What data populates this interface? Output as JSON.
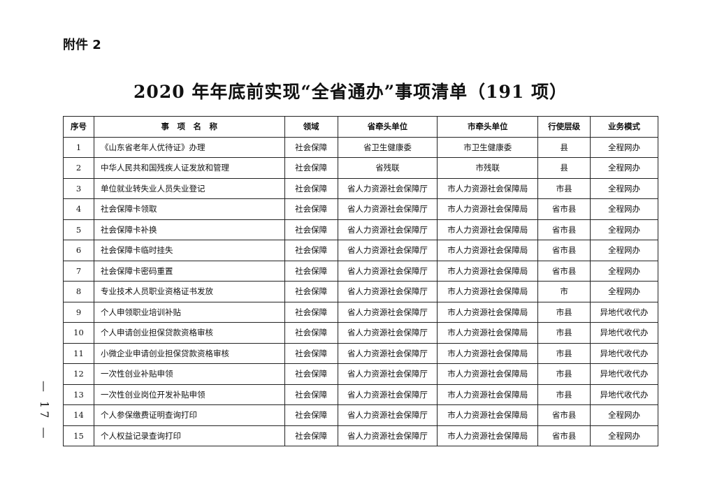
{
  "attachment_label": "附件 2",
  "title": "2020 年年底前实现“全省通办”事项清单（191 项）",
  "page_number": "— 17 —",
  "table": {
    "headers": [
      "序号",
      "事　项　名　称",
      "领域",
      "省牵头单位",
      "市牵头单位",
      "行使层级",
      "业务模式"
    ],
    "rows": [
      [
        "1",
        "《山东省老年人优待证》办理",
        "社会保障",
        "省卫生健康委",
        "市卫生健康委",
        "县",
        "全程网办"
      ],
      [
        "2",
        "中华人民共和国残疾人证发放和管理",
        "社会保障",
        "省残联",
        "市残联",
        "县",
        "全程网办"
      ],
      [
        "3",
        "单位就业转失业人员失业登记",
        "社会保障",
        "省人力资源社会保障厅",
        "市人力资源社会保障局",
        "市县",
        "全程网办"
      ],
      [
        "4",
        "社会保障卡领取",
        "社会保障",
        "省人力资源社会保障厅",
        "市人力资源社会保障局",
        "省市县",
        "全程网办"
      ],
      [
        "5",
        "社会保障卡补换",
        "社会保障",
        "省人力资源社会保障厅",
        "市人力资源社会保障局",
        "省市县",
        "全程网办"
      ],
      [
        "6",
        "社会保障卡临时挂失",
        "社会保障",
        "省人力资源社会保障厅",
        "市人力资源社会保障局",
        "省市县",
        "全程网办"
      ],
      [
        "7",
        "社会保障卡密码重置",
        "社会保障",
        "省人力资源社会保障厅",
        "市人力资源社会保障局",
        "省市县",
        "全程网办"
      ],
      [
        "8",
        "专业技术人员职业资格证书发放",
        "社会保障",
        "省人力资源社会保障厅",
        "市人力资源社会保障局",
        "市",
        "全程网办"
      ],
      [
        "9",
        "个人申领职业培训补贴",
        "社会保障",
        "省人力资源社会保障厅",
        "市人力资源社会保障局",
        "市县",
        "异地代收代办"
      ],
      [
        "10",
        "个人申请创业担保贷款资格审核",
        "社会保障",
        "省人力资源社会保障厅",
        "市人力资源社会保障局",
        "市县",
        "异地代收代办"
      ],
      [
        "11",
        "小微企业申请创业担保贷款资格审核",
        "社会保障",
        "省人力资源社会保障厅",
        "市人力资源社会保障局",
        "市县",
        "异地代收代办"
      ],
      [
        "12",
        "一次性创业补贴申领",
        "社会保障",
        "省人力资源社会保障厅",
        "市人力资源社会保障局",
        "市县",
        "异地代收代办"
      ],
      [
        "13",
        "一次性创业岗位开发补贴申领",
        "社会保障",
        "省人力资源社会保障厅",
        "市人力资源社会保障局",
        "市县",
        "异地代收代办"
      ],
      [
        "14",
        "个人参保缴费证明查询打印",
        "社会保障",
        "省人力资源社会保障厅",
        "市人力资源社会保障局",
        "省市县",
        "全程网办"
      ],
      [
        "15",
        "个人权益记录查询打印",
        "社会保障",
        "省人力资源社会保障厅",
        "市人力资源社会保障局",
        "省市县",
        "全程网办"
      ]
    ]
  }
}
